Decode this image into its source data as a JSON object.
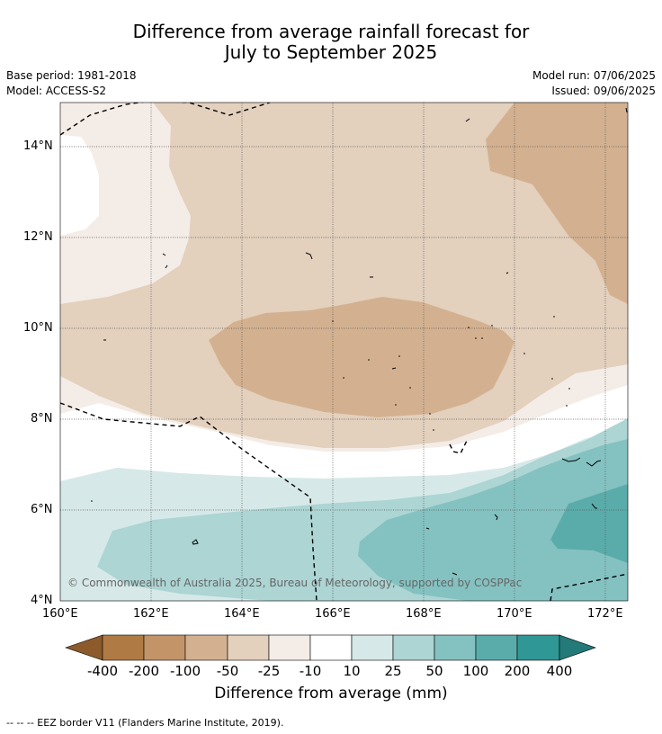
{
  "title_line1": "Difference from average rainfall forecast for",
  "title_line2": "July to September 2025",
  "base_period": "Base period: 1981-2018",
  "model": "Model: ACCESS-S2",
  "model_run": "Model run: 07/06/2025",
  "issued": "Issued: 09/06/2025",
  "copyright": "© Commonwealth of Australia 2025, Bureau of Meteorology, supported by COSPPac",
  "y_ticks": [
    "14°N",
    "12°N",
    "10°N",
    "8°N",
    "6°N",
    "4°N"
  ],
  "x_ticks": [
    "160°E",
    "162°E",
    "164°E",
    "166°E",
    "168°E",
    "170°E",
    "172°E"
  ],
  "colorbar": {
    "title": "Difference from average (mm)",
    "labels": [
      "-400",
      "-200",
      "-100",
      "-50",
      "-25",
      "-10",
      "10",
      "25",
      "50",
      "100",
      "200",
      "400"
    ],
    "colors": [
      "#8c5a2b",
      "#b07a45",
      "#c29468",
      "#d3b190",
      "#e3d0bd",
      "#f4ece6",
      "#ffffff",
      "#d6e9e8",
      "#acd5d4",
      "#84c2c1",
      "#5aacab",
      "#2f9795",
      "#237a78"
    ]
  },
  "legend_note": "--  --  -- EEZ border V11 (Flanders Marine Institute, 2019)."
}
